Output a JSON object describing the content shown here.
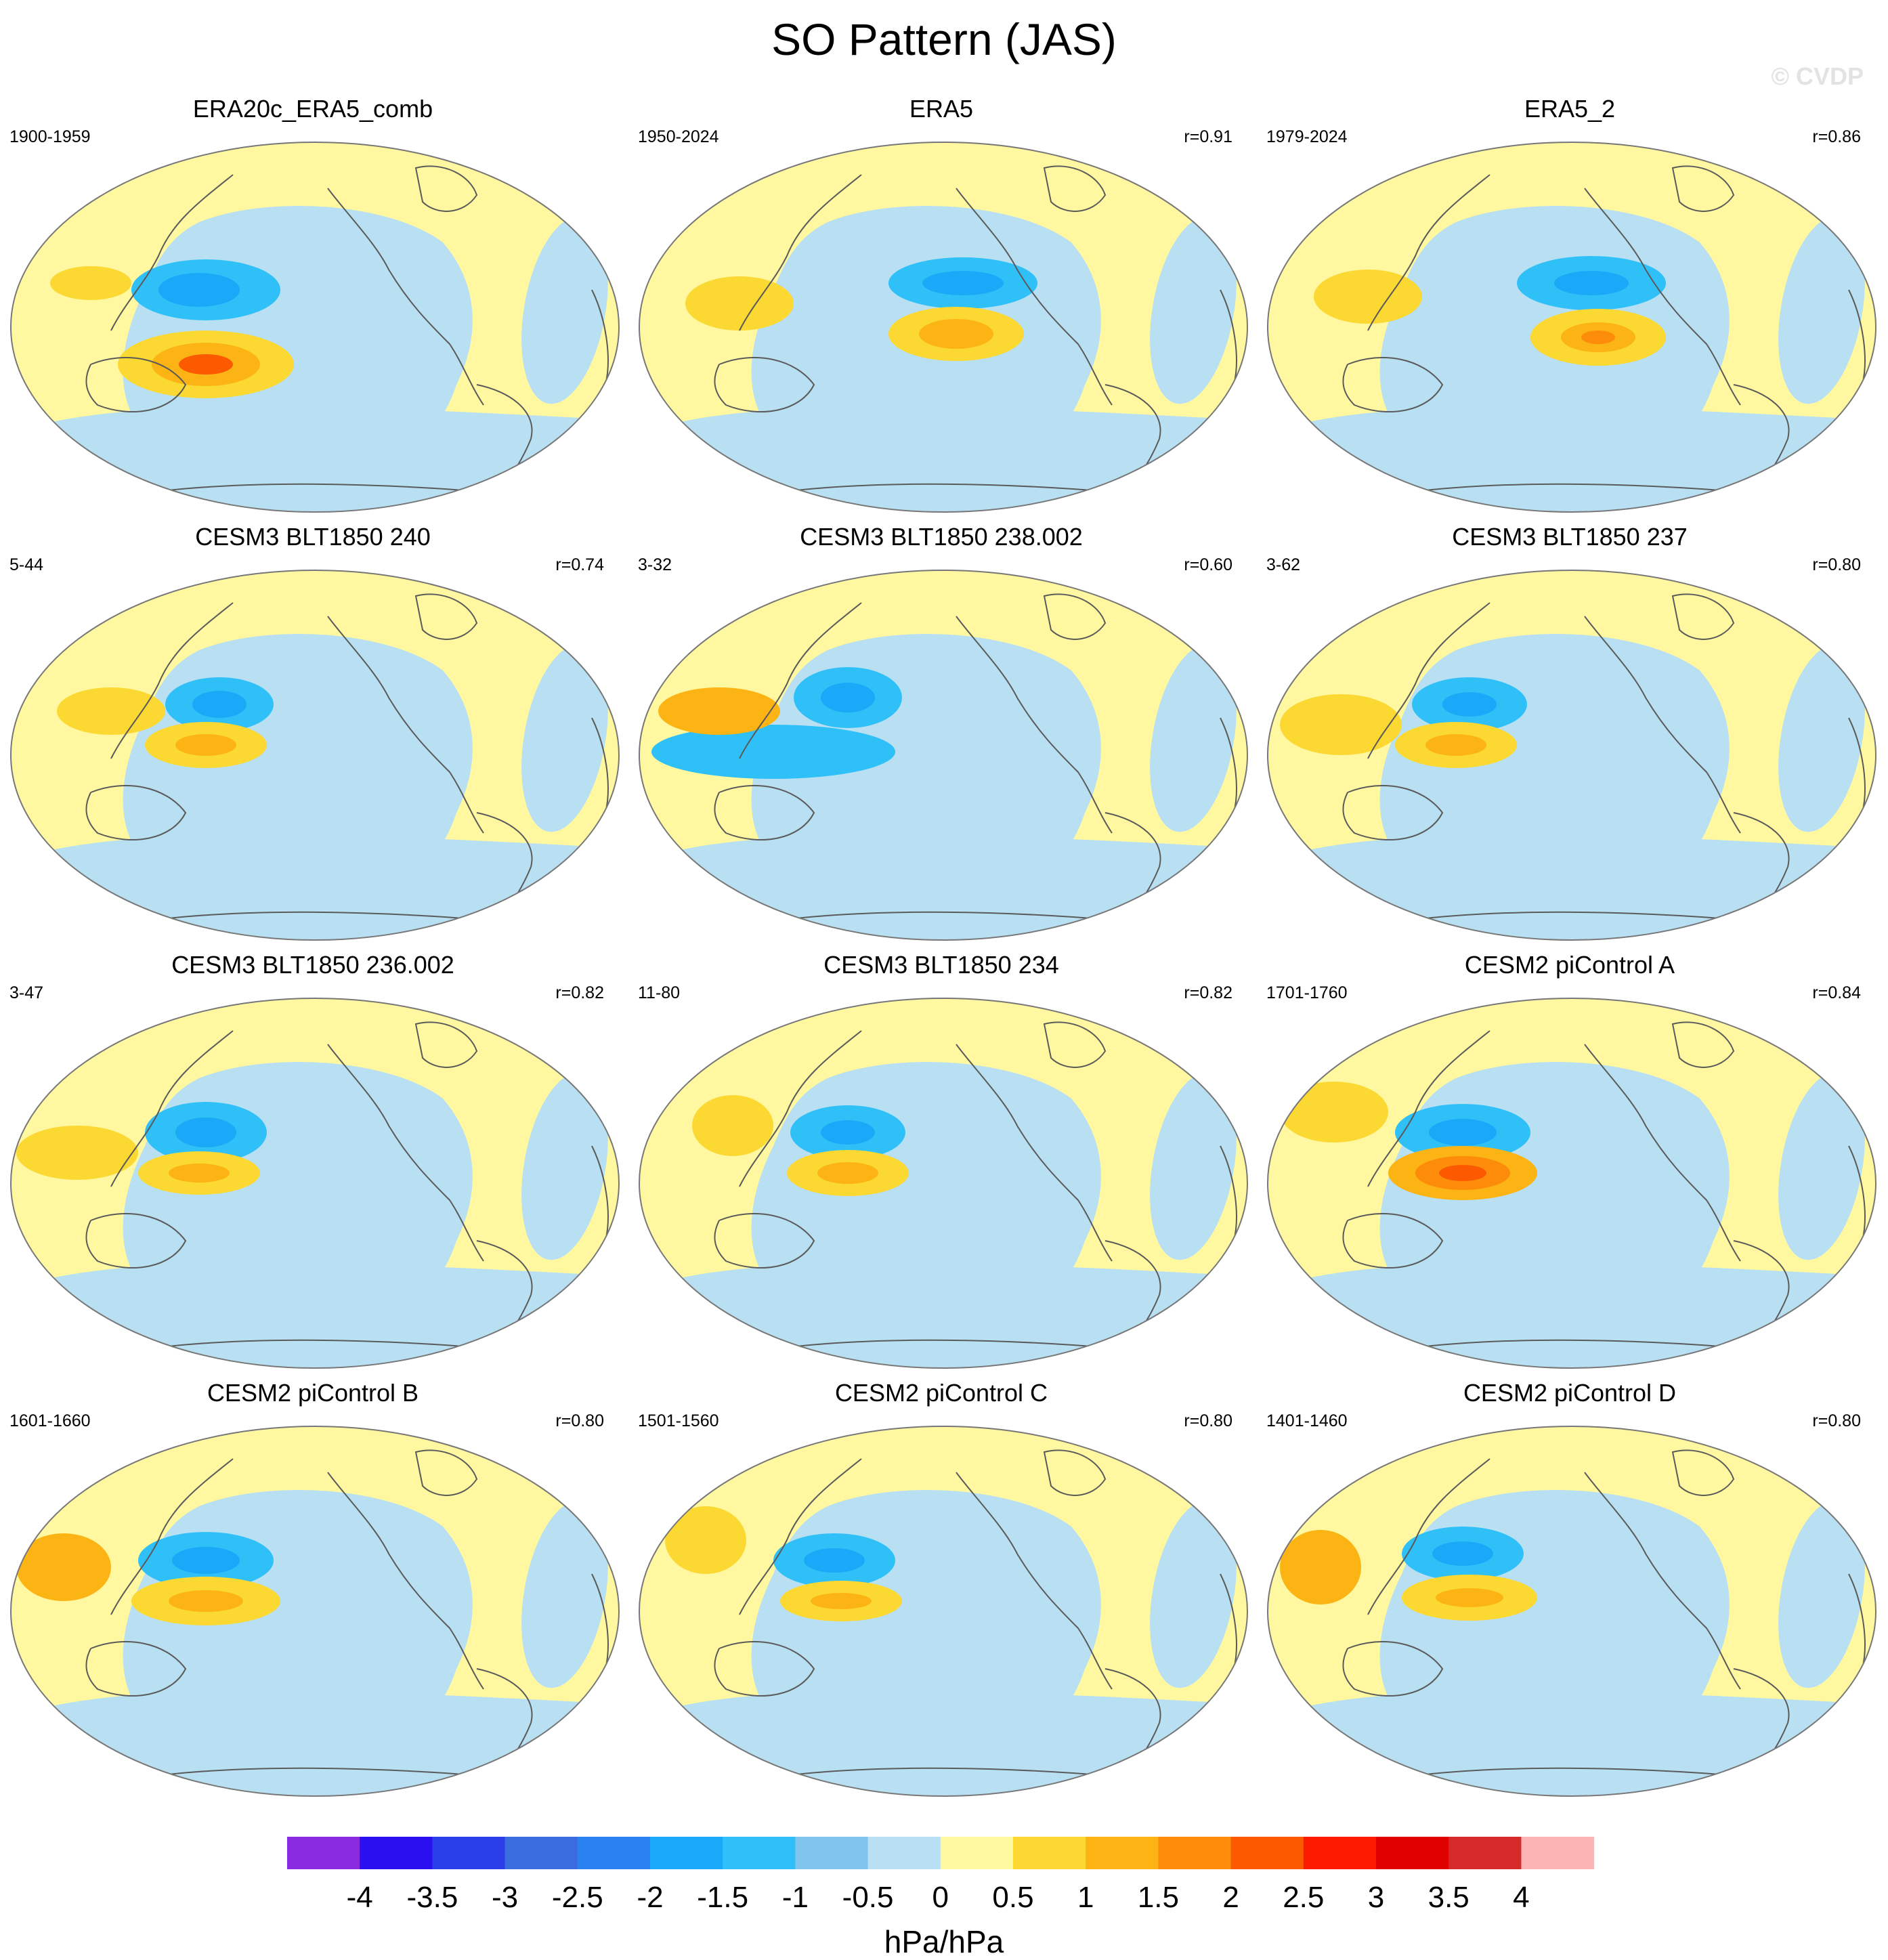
{
  "title": "SO Pattern (JAS)",
  "watermark": "© CVDP",
  "panels": [
    {
      "title": "ERA20c_ERA5_comb",
      "period": "1900-1959",
      "corr": "",
      "style": 0
    },
    {
      "title": "ERA5",
      "period": "1950-2024",
      "corr": "r=0.91",
      "style": 1
    },
    {
      "title": "ERA5_2",
      "period": "1979-2024",
      "corr": "r=0.86",
      "style": 2
    },
    {
      "title": "CESM3 BLT1850 240",
      "period": "5-44",
      "corr": "r=0.74",
      "style": 3
    },
    {
      "title": "CESM3 BLT1850 238.002",
      "period": "3-32",
      "corr": "r=0.60",
      "style": 4
    },
    {
      "title": "CESM3 BLT1850 237",
      "period": "3-62",
      "corr": "r=0.80",
      "style": 5
    },
    {
      "title": "CESM3 BLT1850 236.002",
      "period": "3-47",
      "corr": "r=0.82",
      "style": 6
    },
    {
      "title": "CESM3 BLT1850 234",
      "period": "11-80",
      "corr": "r=0.82",
      "style": 7
    },
    {
      "title": "CESM2 piControl A",
      "period": "1701-1760",
      "corr": "r=0.84",
      "style": 8
    },
    {
      "title": "CESM2 piControl B",
      "period": "1601-1660",
      "corr": "r=0.80",
      "style": 9
    },
    {
      "title": "CESM2 piControl C",
      "period": "1501-1560",
      "corr": "r=0.80",
      "style": 10
    },
    {
      "title": "CESM2 piControl D",
      "period": "1401-1460",
      "corr": "r=0.80",
      "style": 11
    }
  ],
  "colorbar": {
    "units": "hPa/hPa",
    "labels": [
      "-4",
      "-3.5",
      "-3",
      "-2.5",
      "-2",
      "-1.5",
      "-1",
      "-0.5",
      "0",
      "0.5",
      "1",
      "1.5",
      "2",
      "2.5",
      "3",
      "3.5",
      "4"
    ],
    "colors": [
      "#8a2be2",
      "#2a10f0",
      "#2a3ee8",
      "#3c6de0",
      "#2a82f0",
      "#1aa8f8",
      "#30c0f8",
      "#80c6ec",
      "#b8e0f2",
      "#fff8a0",
      "#fcd832",
      "#fcb414",
      "#fc8c0a",
      "#fc5a00",
      "#fc1a00",
      "#e00000",
      "#d42a2a",
      "#fcb4b4"
    ]
  }
}
